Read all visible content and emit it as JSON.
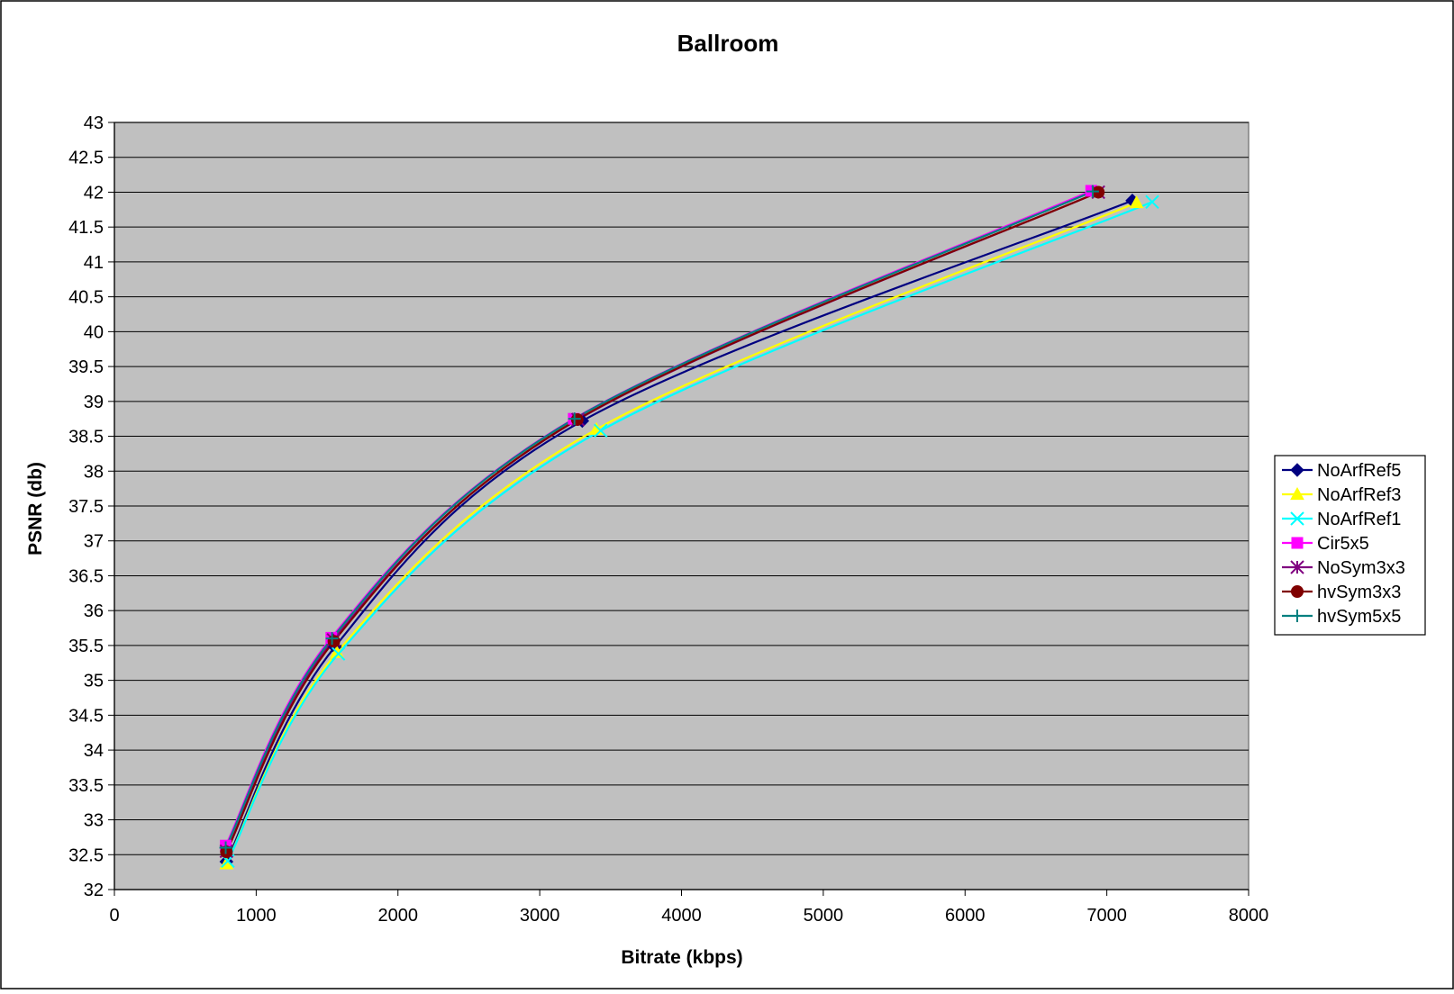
{
  "chart_data": {
    "type": "line",
    "title": "Ballroom",
    "xlabel": "Bitrate (kbps)",
    "ylabel": "PSNR (db)",
    "xlim": [
      0,
      8000
    ],
    "ylim": [
      32,
      43
    ],
    "x_ticks": [
      0,
      1000,
      2000,
      3000,
      4000,
      5000,
      6000,
      7000,
      8000
    ],
    "y_ticks": [
      32,
      32.5,
      33,
      33.5,
      34,
      34.5,
      35,
      35.5,
      36,
      36.5,
      37,
      37.5,
      38,
      38.5,
      39,
      39.5,
      40,
      40.5,
      41,
      41.5,
      42,
      42.5,
      43
    ],
    "grid": "horizontal",
    "plot_background": "#c0c0c0",
    "legend_position": "right",
    "series": [
      {
        "name": "NoArfRef5",
        "color": "#000080",
        "marker": "diamond",
        "points": [
          [
            790,
            32.4
          ],
          [
            1555,
            35.48
          ],
          [
            3300,
            38.72
          ],
          [
            7180,
            41.88
          ]
        ]
      },
      {
        "name": "NoArfRef3",
        "color": "#ffff00",
        "marker": "triangle",
        "points": [
          [
            790,
            32.37
          ],
          [
            1570,
            35.4
          ],
          [
            3400,
            38.6
          ],
          [
            7210,
            41.85
          ]
        ]
      },
      {
        "name": "NoArfRef1",
        "color": "#00ffff",
        "marker": "x",
        "points": [
          [
            800,
            32.41
          ],
          [
            1580,
            35.38
          ],
          [
            3430,
            38.58
          ],
          [
            7320,
            41.86
          ]
        ]
      },
      {
        "name": "Cir5x5",
        "color": "#ff00ff",
        "marker": "square",
        "points": [
          [
            785,
            32.63
          ],
          [
            1530,
            35.61
          ],
          [
            3240,
            38.75
          ],
          [
            6890,
            42.02
          ]
        ]
      },
      {
        "name": "NoSym3x3",
        "color": "#800080",
        "marker": "star",
        "points": [
          [
            790,
            32.55
          ],
          [
            1545,
            35.58
          ],
          [
            3270,
            38.74
          ],
          [
            6940,
            42.0
          ]
        ]
      },
      {
        "name": "hvSym3x3",
        "color": "#800000",
        "marker": "circle",
        "points": [
          [
            790,
            32.54
          ],
          [
            1548,
            35.56
          ],
          [
            3265,
            38.74
          ],
          [
            6940,
            42.0
          ]
        ]
      },
      {
        "name": "hvSym5x5",
        "color": "#008080",
        "marker": "plus",
        "points": [
          [
            785,
            32.6
          ],
          [
            1535,
            35.6
          ],
          [
            3245,
            38.75
          ],
          [
            6900,
            42.01
          ]
        ]
      }
    ]
  }
}
